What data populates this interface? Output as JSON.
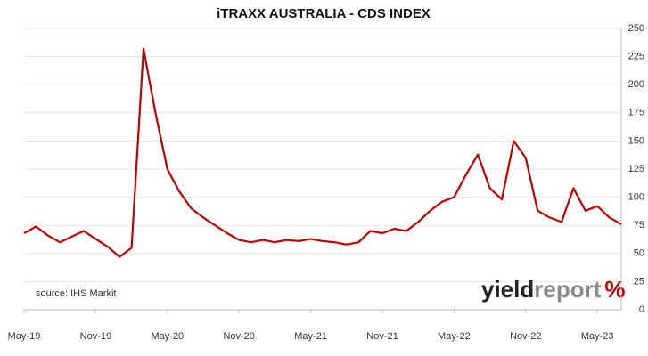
{
  "chart_data": {
    "type": "line",
    "title": "iTRAXX AUSTRALIA - CDS INDEX",
    "note": "source: IHS Markit",
    "logo": {
      "part1": "yield",
      "part2": "report",
      "part3": "%"
    },
    "categories": [
      "May-19",
      null,
      null,
      null,
      null,
      null,
      "Nov-19",
      null,
      null,
      null,
      null,
      null,
      "May-20",
      null,
      null,
      null,
      null,
      null,
      "Nov-20",
      null,
      null,
      null,
      null,
      null,
      "May-21",
      null,
      null,
      null,
      null,
      null,
      "Nov-21",
      null,
      null,
      null,
      null,
      null,
      "May-22",
      null,
      null,
      null,
      null,
      null,
      "Nov-22",
      null,
      null,
      null,
      null,
      null,
      "May-23",
      null,
      null
    ],
    "series": [
      {
        "name": "iTRAXX Australia",
        "color": "#c00000",
        "values": [
          68,
          74,
          66,
          60,
          65,
          70,
          63,
          56,
          47,
          55,
          232,
          175,
          125,
          105,
          90,
          82,
          75,
          68,
          62,
          60,
          62,
          60,
          62,
          61,
          63,
          61,
          60,
          58,
          60,
          70,
          68,
          72,
          70,
          78,
          88,
          96,
          100,
          120,
          138,
          108,
          98,
          150,
          135,
          88,
          82,
          78,
          108,
          88,
          92,
          82,
          76
        ]
      }
    ],
    "ylim": [
      0,
      250
    ],
    "yticks": [
      0,
      25,
      50,
      75,
      100,
      125,
      150,
      175,
      200,
      225,
      250
    ],
    "grid": true,
    "y_axis_side": "right"
  }
}
